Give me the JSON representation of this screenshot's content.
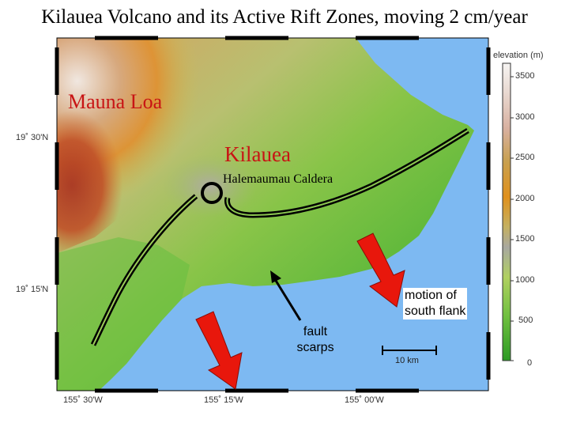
{
  "title": "Kilauea Volcano and its Active Rift Zones, moving 2 cm/year",
  "labels": {
    "mauna_loa": "Mauna Loa",
    "kilauea": "Kilauea",
    "caldera": "Halemaumau Caldera",
    "fault_scarps_1": "fault",
    "fault_scarps_2": "scarps",
    "motion_1": "motion of",
    "motion_2": "south flank",
    "scale": "10 km"
  },
  "axes": {
    "lat_1": "19˚ 30'N",
    "lat_2": "19˚ 15'N",
    "lon_1": "155˚ 30'W",
    "lon_2": "155˚ 15'W",
    "lon_3": "155˚ 00'W"
  },
  "colorbar": {
    "title": "elevation (m)",
    "ticks": [
      "3500",
      "3000",
      "2500",
      "2000",
      "1500",
      "1000",
      "500",
      "0"
    ]
  },
  "colors": {
    "ocean": "#7db9f2",
    "rift_line": "#000000",
    "arrow": "#e8170c",
    "label_red": "#c81414"
  }
}
